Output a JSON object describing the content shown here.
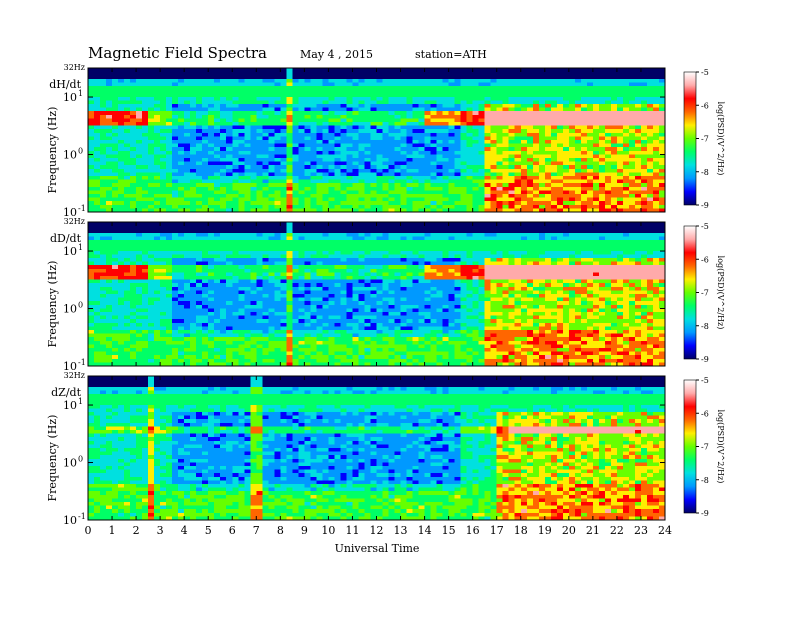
{
  "header": {
    "title": "Magnetic  Field  Spectra",
    "date": "May 4  , 2015",
    "station": "station=ATH"
  },
  "chart_data": [
    {
      "type": "heatmap",
      "panel_label": "dH/dt",
      "top_label": "32Hz",
      "ylabel": "Frequency  (Hz)",
      "y_scale": "log",
      "ylim": [
        0.1,
        32
      ],
      "y_ticks": [
        "10",
        "10",
        "10"
      ],
      "y_tick_exponents": [
        "1",
        "0",
        "-1"
      ],
      "xlim": [
        0,
        24
      ],
      "colorbar": {
        "label": "log(PSD)(V^2/Hz)",
        "ticks": [
          "-5",
          "-6",
          "-7",
          "-8",
          "-9"
        ],
        "range": [
          -9,
          -5
        ],
        "colors": [
          "#000066",
          "#0000ff",
          "#0099ff",
          "#00e0e0",
          "#00ff66",
          "#66ff00",
          "#ffee00",
          "#ff6600",
          "#ff0000",
          "#ffaaaa",
          "#ffffff"
        ]
      },
      "features": {
        "band_hz": [
          3,
          6
        ],
        "band_active_hours": [
          [
            0,
            2.5
          ],
          [
            14,
            24
          ]
        ],
        "broadband_start_hour": 16.5,
        "spike_hours": [
          8.4
        ]
      }
    },
    {
      "type": "heatmap",
      "panel_label": "dD/dt",
      "top_label": "32Hz",
      "ylabel": "Frequency  (Hz)",
      "y_scale": "log",
      "ylim": [
        0.1,
        32
      ],
      "y_ticks": [
        "10",
        "10",
        "10"
      ],
      "y_tick_exponents": [
        "1",
        "0",
        "-1"
      ],
      "xlim": [
        0,
        24
      ],
      "colorbar": {
        "label": "log(PSD)(V^2/Hz)",
        "ticks": [
          "-5",
          "-6",
          "-7",
          "-8",
          "-9"
        ],
        "range": [
          -9,
          -5
        ],
        "colors": [
          "#000066",
          "#0000ff",
          "#0099ff",
          "#00e0e0",
          "#00ff66",
          "#66ff00",
          "#ffee00",
          "#ff6600",
          "#ff0000",
          "#ffaaaa",
          "#ffffff"
        ]
      },
      "features": {
        "band_hz": [
          3,
          6
        ],
        "band_active_hours": [
          [
            0,
            2.5
          ],
          [
            14,
            24
          ]
        ],
        "broadband_start_hour": 16.5,
        "spike_hours": [
          8.4
        ]
      }
    },
    {
      "type": "heatmap",
      "panel_label": "dZ/dt",
      "top_label": "32Hz",
      "ylabel": "Frequency  (Hz)",
      "y_scale": "log",
      "ylim": [
        0.1,
        32
      ],
      "y_ticks": [
        "10",
        "10",
        "10"
      ],
      "y_tick_exponents": [
        "1",
        "0",
        "-1"
      ],
      "xlim": [
        0,
        24
      ],
      "xlabel": "Universal  Time",
      "x_ticks": [
        "0",
        "1",
        "2",
        "3",
        "4",
        "5",
        "6",
        "7",
        "8",
        "9",
        "10",
        "11",
        "12",
        "13",
        "14",
        "15",
        "16",
        "17",
        "18",
        "19",
        "20",
        "21",
        "22",
        "23",
        "24"
      ],
      "colorbar": {
        "label": "log(PSD)(V^2/Hz)",
        "ticks": [
          "-5",
          "-6",
          "-7",
          "-8",
          "-9"
        ],
        "range": [
          -9,
          -5
        ],
        "colors": [
          "#000066",
          "#0000ff",
          "#0099ff",
          "#00e0e0",
          "#00ff66",
          "#66ff00",
          "#ffee00",
          "#ff6600",
          "#ff0000",
          "#ffaaaa",
          "#ffffff"
        ]
      },
      "features": {
        "band_hz": [
          3,
          4
        ],
        "band_active_hours": [
          [
            17.5,
            24
          ]
        ],
        "broadband_start_hour": 17,
        "spike_hours": [
          2.7,
          7.0
        ]
      }
    }
  ]
}
